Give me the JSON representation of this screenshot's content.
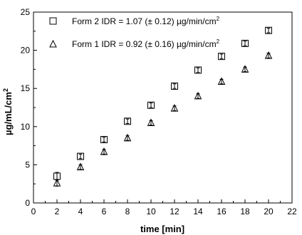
{
  "chart_data": {
    "type": "scatter",
    "xlabel": "time [min]",
    "ylabel": "µg/mL/cm",
    "ylabel_sup": "2",
    "xlim": [
      0,
      22
    ],
    "ylim": [
      0,
      25
    ],
    "x_ticks": [
      0,
      2,
      4,
      6,
      8,
      10,
      12,
      14,
      16,
      18,
      20,
      22
    ],
    "y_ticks": [
      0,
      5,
      10,
      15,
      20,
      25
    ],
    "grid": false,
    "legend_position": "top-left",
    "series": [
      {
        "name": "Form 2 IDR = 1.07 (± 0.12) µg/min/cm",
        "name_sup": "2",
        "marker": "square",
        "x": [
          2,
          4,
          6,
          8,
          10,
          12,
          14,
          16,
          18,
          20
        ],
        "y": [
          3.5,
          6.1,
          8.3,
          10.7,
          12.8,
          15.3,
          17.4,
          19.2,
          20.9,
          22.6
        ],
        "err": [
          0.5,
          0.3,
          0.3,
          0.3,
          0.3,
          0.3,
          0.3,
          0.3,
          0.3,
          0.3
        ]
      },
      {
        "name": "Form 1 IDR = 0.92 (± 0.16) µg/min/cm",
        "name_sup": "2",
        "marker": "triangle",
        "x": [
          2,
          4,
          6,
          8,
          10,
          12,
          14,
          16,
          18,
          20
        ],
        "y": [
          2.6,
          4.7,
          6.7,
          8.5,
          10.5,
          12.4,
          14.0,
          15.9,
          17.5,
          19.3
        ],
        "err": [
          0.4,
          0.3,
          0.3,
          0.3,
          0.3,
          0.3,
          0.3,
          0.3,
          0.3,
          0.3
        ]
      }
    ]
  }
}
